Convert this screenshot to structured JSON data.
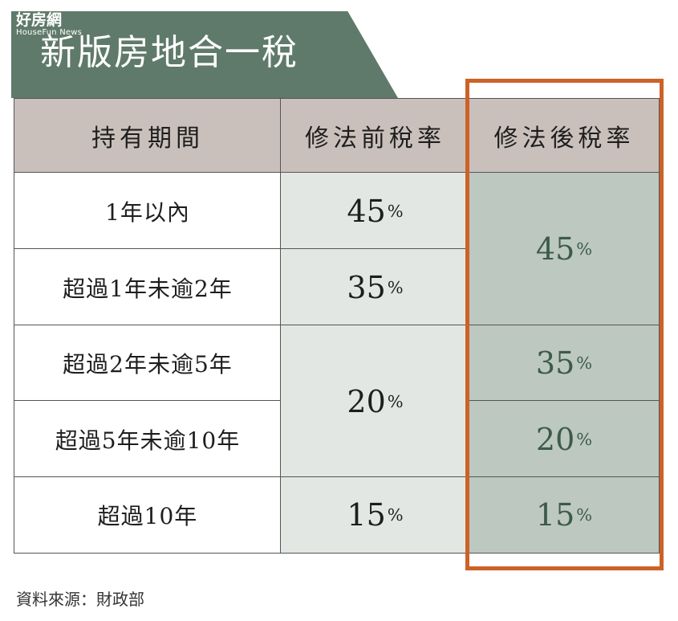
{
  "logo": {
    "name": "好房網",
    "sub": "HouseFun News"
  },
  "title": "新版房地合一稅",
  "table": {
    "headers": [
      "持有期間",
      "修法前稅率",
      "修法後稅率"
    ],
    "periods": [
      "1年以內",
      "超過1年未逾2年",
      "超過2年未逾5年",
      "超過5年未逾10年",
      "超過10年"
    ],
    "before_rates": [
      {
        "value": "45",
        "unit": "%"
      },
      {
        "value": "35",
        "unit": "%"
      },
      {
        "value": "20",
        "unit": "%"
      },
      {
        "value": "15",
        "unit": "%"
      }
    ],
    "after_rates": [
      {
        "value": "45",
        "unit": "%"
      },
      {
        "value": "35",
        "unit": "%"
      },
      {
        "value": "20",
        "unit": "%"
      },
      {
        "value": "15",
        "unit": "%"
      }
    ]
  },
  "source": "資料來源：財政部",
  "colors": {
    "banner": "#5f7a6b",
    "header_bg": "#cac0bb",
    "before_bg": "#e3e7e4",
    "after_bg": "#bcc8c0",
    "highlight": "#cc6228"
  }
}
